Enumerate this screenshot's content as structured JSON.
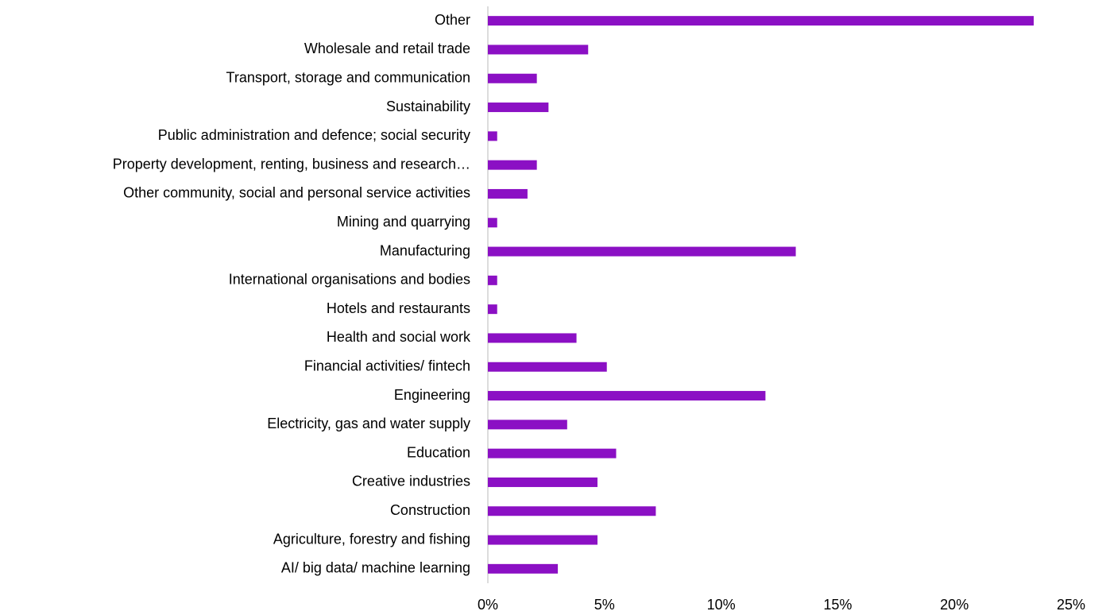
{
  "chart_data": {
    "type": "hbar",
    "categories": [
      "Other",
      "Wholesale and retail trade",
      "Transport, storage and communication",
      "Sustainability",
      "Public administration and defence; social security",
      "Property development, renting, business and research…",
      "Other community, social and personal service activities",
      "Mining and quarrying",
      "Manufacturing",
      "International organisations and bodies",
      "Hotels and restaurants",
      "Health and social work",
      "Financial activities/ fintech",
      "Engineering",
      "Electricity, gas and water supply",
      "Education",
      "Creative industries",
      "Construction",
      "Agriculture, forestry and fishing",
      "AI/ big data/ machine learning"
    ],
    "values": [
      23.4,
      4.3,
      2.1,
      2.6,
      0.4,
      2.1,
      1.7,
      0.4,
      13.2,
      0.4,
      0.4,
      3.8,
      5.1,
      11.9,
      3.4,
      5.5,
      4.7,
      7.2,
      4.7,
      3.0
    ],
    "color": "#8b10c4",
    "xlim": [
      0,
      25
    ],
    "xticks": [
      {
        "value": 0,
        "label": "0%"
      },
      {
        "value": 5,
        "label": "5%"
      },
      {
        "value": 10,
        "label": "10%"
      },
      {
        "value": 15,
        "label": "15%"
      },
      {
        "value": 20,
        "label": "20%"
      },
      {
        "value": 25,
        "label": "25%"
      }
    ],
    "grid": false
  }
}
